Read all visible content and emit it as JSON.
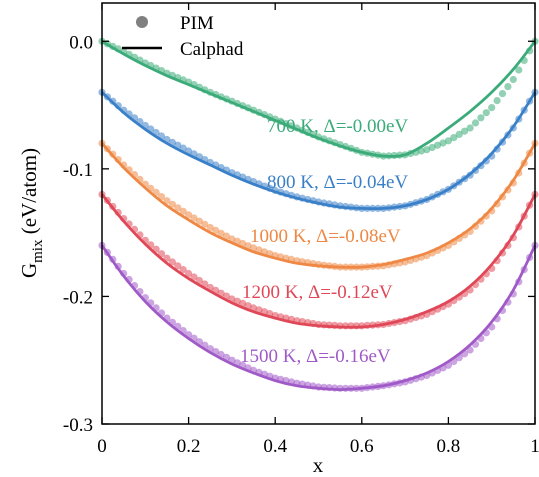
{
  "chart_data": {
    "type": "line",
    "xlabel": "x",
    "ylabel": "G",
    "ylabel_sub": "mix",
    "ylabel_unit": " (eV/atom)",
    "xlim": [
      0,
      1
    ],
    "ylim": [
      -0.3,
      0.03
    ],
    "x_ticks": [
      0,
      0.2,
      0.4,
      0.6,
      0.8,
      1
    ],
    "x_tick_labels": [
      "0",
      "0.2",
      "0.4",
      "0.6",
      "0.8",
      "1"
    ],
    "y_ticks": [
      0.0,
      -0.1,
      -0.2,
      -0.3
    ],
    "y_tick_labels": [
      "0.0",
      "-0.1",
      "-0.2",
      "-0.3"
    ],
    "grid": false,
    "legend": {
      "placement": "top-left",
      "entries": [
        {
          "label": "PIM",
          "marker": "circle",
          "color": "#808080"
        },
        {
          "label": "Calphad",
          "marker": "line",
          "color": "#000000"
        }
      ]
    },
    "x": [
      0,
      0.05,
      0.1,
      0.15,
      0.2,
      0.25,
      0.3,
      0.35,
      0.4,
      0.45,
      0.5,
      0.55,
      0.6,
      0.65,
      0.7,
      0.75,
      0.8,
      0.85,
      0.9,
      0.95,
      1.0
    ],
    "series": [
      {
        "label": "700 K, Δ=-0.00eV",
        "color": "#3aab79",
        "shift": 0.0,
        "pim": [
          0.0,
          -0.008,
          -0.017,
          -0.025,
          -0.032,
          -0.04,
          -0.047,
          -0.054,
          -0.061,
          -0.068,
          -0.075,
          -0.081,
          -0.087,
          -0.09,
          -0.089,
          -0.085,
          -0.078,
          -0.068,
          -0.052,
          -0.03,
          0.0
        ],
        "calphad": [
          0.0,
          -0.01,
          -0.019,
          -0.027,
          -0.034,
          -0.041,
          -0.048,
          -0.055,
          -0.062,
          -0.069,
          -0.076,
          -0.082,
          -0.087,
          -0.09,
          -0.089,
          -0.08,
          -0.068,
          -0.055,
          -0.04,
          -0.022,
          0.0
        ]
      },
      {
        "label": "800 K, Δ=-0.04eV",
        "color": "#3a80c8",
        "shift": -0.04,
        "pim": [
          0.0,
          -0.014,
          -0.026,
          -0.037,
          -0.046,
          -0.055,
          -0.063,
          -0.07,
          -0.077,
          -0.082,
          -0.086,
          -0.089,
          -0.091,
          -0.091,
          -0.089,
          -0.084,
          -0.076,
          -0.065,
          -0.05,
          -0.028,
          0.0
        ],
        "calphad": [
          0.0,
          -0.016,
          -0.029,
          -0.04,
          -0.049,
          -0.057,
          -0.065,
          -0.072,
          -0.078,
          -0.083,
          -0.087,
          -0.09,
          -0.091,
          -0.091,
          -0.089,
          -0.084,
          -0.076,
          -0.064,
          -0.048,
          -0.027,
          0.0
        ]
      },
      {
        "label": "1000 K, Δ=-0.08eV",
        "color": "#ee8844",
        "shift": -0.08,
        "pim": [
          0.0,
          -0.017,
          -0.032,
          -0.045,
          -0.056,
          -0.066,
          -0.075,
          -0.082,
          -0.088,
          -0.092,
          -0.095,
          -0.097,
          -0.097,
          -0.096,
          -0.093,
          -0.088,
          -0.08,
          -0.069,
          -0.053,
          -0.031,
          0.0
        ],
        "calphad": [
          0.0,
          -0.019,
          -0.035,
          -0.049,
          -0.06,
          -0.07,
          -0.078,
          -0.085,
          -0.09,
          -0.094,
          -0.096,
          -0.097,
          -0.097,
          -0.095,
          -0.091,
          -0.086,
          -0.078,
          -0.067,
          -0.051,
          -0.029,
          0.0
        ]
      },
      {
        "label": "1200 K, Δ=-0.12eV",
        "color": "#e04858",
        "shift": -0.12,
        "pim": [
          0.0,
          -0.019,
          -0.036,
          -0.05,
          -0.062,
          -0.073,
          -0.082,
          -0.089,
          -0.095,
          -0.099,
          -0.102,
          -0.103,
          -0.103,
          -0.102,
          -0.099,
          -0.094,
          -0.086,
          -0.075,
          -0.058,
          -0.034,
          0.0
        ],
        "calphad": [
          0.0,
          -0.021,
          -0.039,
          -0.054,
          -0.066,
          -0.076,
          -0.085,
          -0.092,
          -0.097,
          -0.101,
          -0.103,
          -0.104,
          -0.104,
          -0.102,
          -0.098,
          -0.092,
          -0.084,
          -0.072,
          -0.055,
          -0.032,
          0.0
        ]
      },
      {
        "label": "1500 K, Δ=-0.16eV",
        "color": "#a05ac8",
        "shift": -0.16,
        "pim": [
          0.0,
          -0.022,
          -0.041,
          -0.057,
          -0.07,
          -0.081,
          -0.09,
          -0.098,
          -0.104,
          -0.108,
          -0.111,
          -0.112,
          -0.112,
          -0.11,
          -0.107,
          -0.102,
          -0.094,
          -0.082,
          -0.064,
          -0.038,
          0.0
        ],
        "calphad": [
          0.0,
          -0.024,
          -0.044,
          -0.06,
          -0.073,
          -0.084,
          -0.093,
          -0.1,
          -0.106,
          -0.11,
          -0.112,
          -0.113,
          -0.112,
          -0.11,
          -0.106,
          -0.1,
          -0.091,
          -0.078,
          -0.06,
          -0.035,
          0.0
        ]
      }
    ]
  }
}
